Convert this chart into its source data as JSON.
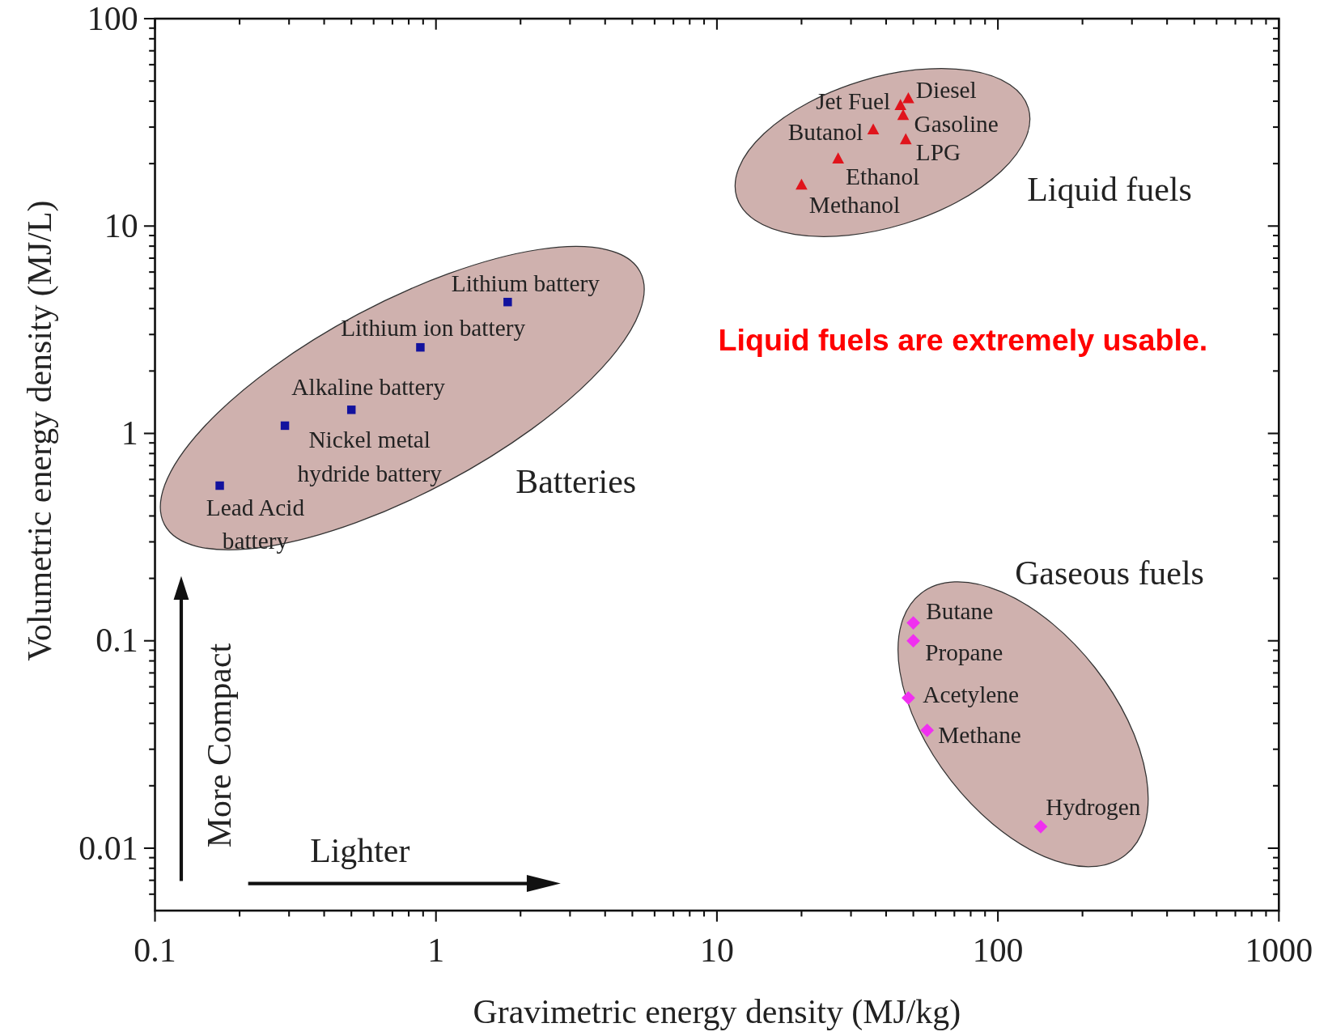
{
  "chart_data": {
    "type": "scatter",
    "xlabel": "Gravimetric energy density (MJ/kg)",
    "ylabel": "Volumetric energy density (MJ/L)",
    "log": "xy",
    "xlim": [
      0.1,
      1000
    ],
    "ylim": [
      0.005,
      100
    ],
    "xticks": [
      0.1,
      {
        "value": 0.2,
        "label": null
      },
      {
        "value": 0.3,
        "label": null
      },
      {
        "value": 0.4,
        "label": null
      },
      {
        "value": 0.5,
        "label": null
      },
      {
        "value": 0.6,
        "label": null
      },
      {
        "value": 0.7,
        "label": null
      },
      {
        "value": 0.8,
        "label": null
      },
      {
        "value": 0.9,
        "label": null
      },
      1,
      {
        "value": 2,
        "label": null
      },
      {
        "value": 3,
        "label": null
      },
      {
        "value": 4,
        "label": null
      },
      {
        "value": 5,
        "label": null
      },
      {
        "value": 6,
        "label": null
      },
      {
        "value": 7,
        "label": null
      },
      {
        "value": 8,
        "label": null
      },
      {
        "value": 9,
        "label": null
      },
      10,
      {
        "value": 20,
        "label": null
      },
      {
        "value": 30,
        "label": null
      },
      {
        "value": 40,
        "label": null
      },
      {
        "value": 50,
        "label": null
      },
      {
        "value": 60,
        "label": null
      },
      {
        "value": 70,
        "label": null
      },
      {
        "value": 80,
        "label": null
      },
      {
        "value": 90,
        "label": null
      },
      100,
      {
        "value": 200,
        "label": null
      },
      {
        "value": 300,
        "label": null
      },
      {
        "value": 400,
        "label": null
      },
      {
        "value": 500,
        "label": null
      },
      {
        "value": 600,
        "label": null
      },
      {
        "value": 700,
        "label": null
      },
      {
        "value": 800,
        "label": null
      },
      {
        "value": 900,
        "label": null
      },
      1000
    ],
    "yticks": [
      {
        "value": 0.006,
        "label": null
      },
      {
        "value": 0.007,
        "label": null
      },
      {
        "value": 0.008,
        "label": null
      },
      {
        "value": 0.009,
        "label": null
      },
      0.01,
      {
        "value": 0.02,
        "label": null
      },
      {
        "value": 0.03,
        "label": null
      },
      {
        "value": 0.04,
        "label": null
      },
      {
        "value": 0.05,
        "label": null
      },
      {
        "value": 0.06,
        "label": null
      },
      {
        "value": 0.07,
        "label": null
      },
      {
        "value": 0.08,
        "label": null
      },
      {
        "value": 0.09,
        "label": null
      },
      0.1,
      {
        "value": 0.2,
        "label": null
      },
      {
        "value": 0.3,
        "label": null
      },
      {
        "value": 0.4,
        "label": null
      },
      {
        "value": 0.5,
        "label": null
      },
      {
        "value": 0.6,
        "label": null
      },
      {
        "value": 0.7,
        "label": null
      },
      {
        "value": 0.8,
        "label": null
      },
      {
        "value": 0.9,
        "label": null
      },
      1,
      {
        "value": 2,
        "label": null
      },
      {
        "value": 3,
        "label": null
      },
      {
        "value": 4,
        "label": null
      },
      {
        "value": 5,
        "label": null
      },
      {
        "value": 6,
        "label": null
      },
      {
        "value": 7,
        "label": null
      },
      {
        "value": 8,
        "label": null
      },
      {
        "value": 9,
        "label": null
      },
      10,
      {
        "value": 20,
        "label": null
      },
      {
        "value": 30,
        "label": null
      },
      {
        "value": 40,
        "label": null
      },
      {
        "value": 50,
        "label": null
      },
      {
        "value": 60,
        "label": null
      },
      {
        "value": 70,
        "label": null
      },
      {
        "value": 80,
        "label": null
      },
      {
        "value": 90,
        "label": null
      },
      100
    ],
    "series": [
      {
        "color": "#12129e",
        "marker": "square",
        "x": [
          0.17,
          0.29,
          0.5,
          0.88,
          1.8
        ],
        "values": [
          0.56,
          1.09,
          1.3,
          2.6,
          4.3
        ]
      },
      {
        "color": "#e0141c",
        "marker": "triangle",
        "x": [
          20,
          27,
          36,
          47,
          46,
          45,
          48
        ],
        "values": [
          15.7,
          21,
          29,
          26,
          34,
          38,
          41
        ]
      },
      {
        "color": "#f030f0",
        "marker": "diamond",
        "x": [
          50,
          50,
          48,
          56,
          142
        ],
        "values": [
          0.122,
          0.1,
          0.053,
          0.037,
          0.0127
        ]
      }
    ],
    "annotations": [
      {
        "text": "Lead Acid\nbattery",
        "x": 0.17,
        "y": 0.56
      },
      {
        "text": "Nickel metal\nhydride battery",
        "x": 0.29,
        "y": 1.09
      },
      {
        "text": "Alkaline battery",
        "x": 0.5,
        "y": 1.3
      },
      {
        "text": "Lithium ion battery",
        "x": 0.88,
        "y": 2.6
      },
      {
        "text": "Lithium battery",
        "x": 1.8,
        "y": 4.3
      },
      {
        "text": "Methanol",
        "x": 20,
        "y": 15.7
      },
      {
        "text": "Ethanol",
        "x": 27,
        "y": 21
      },
      {
        "text": "Butanol",
        "x": 36,
        "y": 29
      },
      {
        "text": "LPG",
        "x": 47,
        "y": 26
      },
      {
        "text": "Gasoline",
        "x": 46,
        "y": 34
      },
      {
        "text": "Jet Fuel",
        "x": 45,
        "y": 38
      },
      {
        "text": "Diesel",
        "x": 48,
        "y": 41
      },
      {
        "text": "Butane",
        "x": 50,
        "y": 0.122
      },
      {
        "text": "Propane",
        "x": 50,
        "y": 0.1
      },
      {
        "text": "Acetylene",
        "x": 48,
        "y": 0.053
      },
      {
        "text": "Methane",
        "x": 56,
        "y": 0.037
      },
      {
        "text": "Hydrogen",
        "x": 142,
        "y": 0.0127
      },
      "Batteries",
      "Liquid fuels",
      "Gaseous fuels",
      "Liquid fuels are extremely usable.",
      "More Compact",
      "Lighter"
    ]
  }
}
